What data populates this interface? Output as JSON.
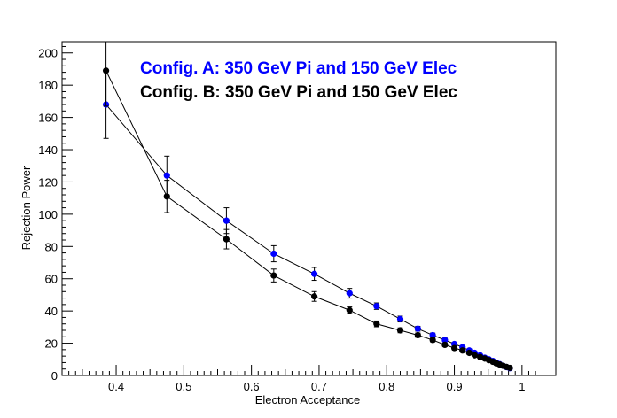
{
  "chart_data": {
    "type": "scatter",
    "xlabel": "Electron Acceptance",
    "ylabel": "Rejection Power",
    "xlim": [
      0.32,
      1.05
    ],
    "ylim": [
      0,
      207
    ],
    "x_ticks": [
      0.4,
      0.5,
      0.6,
      0.7,
      0.8,
      0.9,
      1
    ],
    "x_tick_labels": [
      "0.4",
      "0.5",
      "0.6",
      "0.7",
      "0.8",
      "0.9",
      "1"
    ],
    "y_ticks": [
      0,
      20,
      40,
      60,
      80,
      100,
      120,
      140,
      160,
      180,
      200
    ],
    "y_tick_labels": [
      "0",
      "20",
      "40",
      "60",
      "80",
      "100",
      "120",
      "140",
      "160",
      "180",
      "200"
    ],
    "grid": false,
    "legend_position": "top",
    "series": [
      {
        "name": "Config. A: 350 GeV Pi and 150 GeV Elec",
        "color": "#0000ff",
        "points": [
          {
            "x": 0.385,
            "y": 168,
            "err": 21
          },
          {
            "x": 0.475,
            "y": 124,
            "err": 12
          },
          {
            "x": 0.563,
            "y": 96,
            "err": 8
          },
          {
            "x": 0.633,
            "y": 75.5,
            "err": 5
          },
          {
            "x": 0.693,
            "y": 63,
            "err": 4
          },
          {
            "x": 0.745,
            "y": 51,
            "err": 3
          },
          {
            "x": 0.785,
            "y": 43,
            "err": 2
          },
          {
            "x": 0.82,
            "y": 35,
            "err": 1.8
          },
          {
            "x": 0.846,
            "y": 29,
            "err": 1.5
          },
          {
            "x": 0.868,
            "y": 25,
            "err": 1.3
          },
          {
            "x": 0.886,
            "y": 22,
            "err": 1.2
          },
          {
            "x": 0.9,
            "y": 19.5,
            "err": 1
          },
          {
            "x": 0.912,
            "y": 17.5,
            "err": 1
          },
          {
            "x": 0.922,
            "y": 15.5,
            "err": 0.9
          },
          {
            "x": 0.93,
            "y": 14,
            "err": 0.8
          },
          {
            "x": 0.938,
            "y": 12.5,
            "err": 0.7
          },
          {
            "x": 0.945,
            "y": 11,
            "err": 0.6
          },
          {
            "x": 0.951,
            "y": 10,
            "err": 0.6
          },
          {
            "x": 0.957,
            "y": 9,
            "err": 0.5
          },
          {
            "x": 0.962,
            "y": 8,
            "err": 0.5
          },
          {
            "x": 0.967,
            "y": 7,
            "err": 0.4
          },
          {
            "x": 0.972,
            "y": 6,
            "err": 0.4
          },
          {
            "x": 0.977,
            "y": 5.2,
            "err": 0.3
          },
          {
            "x": 0.982,
            "y": 4.5,
            "err": 0.3
          }
        ]
      },
      {
        "name": "Config. B: 350 GeV Pi and 150 GeV Elec",
        "color": "#000000",
        "points": [
          {
            "x": 0.385,
            "y": 189,
            "err": 22
          },
          {
            "x": 0.475,
            "y": 111,
            "err": 10
          },
          {
            "x": 0.563,
            "y": 84.5,
            "err": 6
          },
          {
            "x": 0.633,
            "y": 62,
            "err": 4
          },
          {
            "x": 0.693,
            "y": 49,
            "err": 3
          },
          {
            "x": 0.745,
            "y": 40.5,
            "err": 2
          },
          {
            "x": 0.785,
            "y": 32,
            "err": 1.8
          },
          {
            "x": 0.82,
            "y": 28,
            "err": 1.5
          },
          {
            "x": 0.846,
            "y": 25,
            "err": 1.3
          },
          {
            "x": 0.868,
            "y": 22,
            "err": 1.2
          },
          {
            "x": 0.886,
            "y": 19,
            "err": 1
          },
          {
            "x": 0.9,
            "y": 17,
            "err": 1
          },
          {
            "x": 0.912,
            "y": 15.5,
            "err": 0.9
          },
          {
            "x": 0.922,
            "y": 14,
            "err": 0.8
          },
          {
            "x": 0.93,
            "y": 12.5,
            "err": 0.7
          },
          {
            "x": 0.938,
            "y": 11.5,
            "err": 0.7
          },
          {
            "x": 0.945,
            "y": 10.5,
            "err": 0.6
          },
          {
            "x": 0.951,
            "y": 9.5,
            "err": 0.6
          },
          {
            "x": 0.957,
            "y": 8.5,
            "err": 0.5
          },
          {
            "x": 0.962,
            "y": 7.5,
            "err": 0.5
          },
          {
            "x": 0.967,
            "y": 6.8,
            "err": 0.4
          },
          {
            "x": 0.972,
            "y": 6,
            "err": 0.4
          },
          {
            "x": 0.977,
            "y": 5.3,
            "err": 0.3
          },
          {
            "x": 0.982,
            "y": 4.7,
            "err": 0.3
          }
        ]
      }
    ]
  }
}
